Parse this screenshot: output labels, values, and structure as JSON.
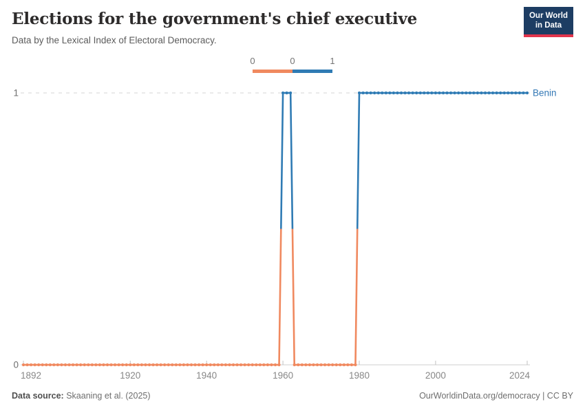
{
  "header": {
    "title": "Elections for the government's chief executive",
    "subtitle": "Data by the Lexical Index of Electoral Democracy."
  },
  "logo": {
    "line1": "Our World",
    "line2": "in Data",
    "bg_color": "#1D3D63",
    "accent_color": "#E2344C"
  },
  "legend": {
    "labels": [
      "0",
      "0",
      "1"
    ]
  },
  "chart_data": {
    "type": "line",
    "title": "Elections for the government's chief executive",
    "subtitle": "Data by the Lexical Index of Electoral Democracy.",
    "xlabel": "",
    "ylabel": "",
    "xlim": [
      1892,
      2024
    ],
    "ylim": [
      0,
      1
    ],
    "x_ticks": [
      1892,
      1920,
      1940,
      1960,
      1980,
      2000,
      2024
    ],
    "y_ticks": [
      0,
      1
    ],
    "grid": "dashed horizontal gridline at y=1, solid axis baseline at y=0",
    "legend_position": "top-center",
    "value_colors": {
      "0": "#F0895F",
      "1": "#2F7BB4"
    },
    "series": [
      {
        "name": "Benin",
        "label_color": "#3378B5",
        "point_interval": "yearly",
        "runs": [
          {
            "start_year": 1892,
            "end_year": 1959,
            "value": 0
          },
          {
            "start_year": 1960,
            "end_year": 1962,
            "value": 1
          },
          {
            "start_year": 1963,
            "end_year": 1979,
            "value": 0
          },
          {
            "start_year": 1980,
            "end_year": 2024,
            "value": 1
          }
        ]
      }
    ]
  },
  "footer": {
    "source_label": "Data source:",
    "source_value": "Skaaning et al. (2025)",
    "credit": "OurWorldinData.org/democracy | CC BY"
  }
}
